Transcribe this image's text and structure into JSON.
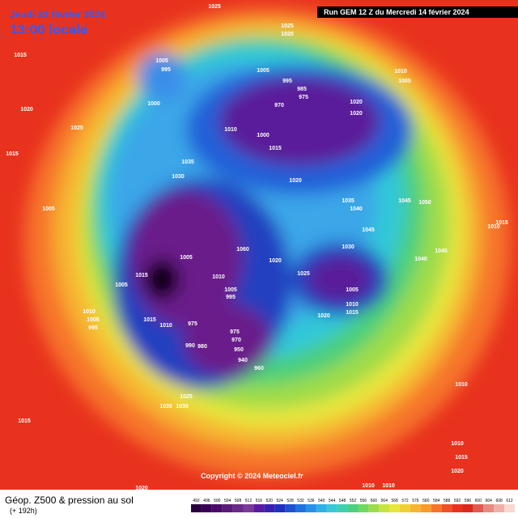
{
  "header": {
    "date": "Jeudi 22 février 2024",
    "time": "13:00 locale",
    "run": "Run GEM 12 Z du Mercredi 14 février 2024"
  },
  "footer": {
    "title": "Géop. Z500 & pression au sol",
    "subtitle": "(+ 192h)",
    "copyright": "Copyright © 2024 Meteociel.fr"
  },
  "legend": {
    "ticks": [
      "492",
      "496",
      "500",
      "504",
      "508",
      "512",
      "516",
      "520",
      "524",
      "528",
      "532",
      "536",
      "540",
      "544",
      "548",
      "552",
      "556",
      "560",
      "564",
      "568",
      "572",
      "576",
      "580",
      "584",
      "588",
      "592",
      "596",
      "600",
      "604",
      "608",
      "612"
    ]
  },
  "pressure_labels": [
    "1015",
    "1025",
    "1025",
    "1020",
    "1020",
    "1025",
    "1015",
    "1005",
    "995",
    "1000",
    "1005",
    "995",
    "985",
    "975",
    "970",
    "1020",
    "1020",
    "1010",
    "1000",
    "1015",
    "1035",
    "1030",
    "1020",
    "1035",
    "1040",
    "1045",
    "1050",
    "1010",
    "1005",
    "1045",
    "1030",
    "1040",
    "1045",
    "1060",
    "1020",
    "1025",
    "1005",
    "1015",
    "1005",
    "1010",
    "1005",
    "995",
    "1005",
    "1010",
    "1015",
    "1020",
    "1015",
    "1010",
    "975",
    "975",
    "970",
    "990",
    "980",
    "950",
    "940",
    "960",
    "1025",
    "1035",
    "1030",
    "1015",
    "1010",
    "1005",
    "995",
    "1005",
    "1010",
    "1010",
    "1015",
    "1020",
    "1010",
    "1010",
    "1020",
    "1015",
    "1010"
  ]
}
